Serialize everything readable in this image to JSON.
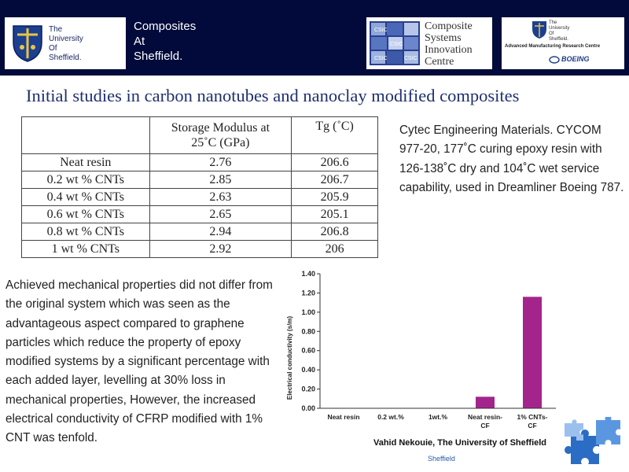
{
  "header": {
    "university_lines": [
      "The",
      "University",
      "Of",
      "Sheffield."
    ],
    "brand_lines": [
      "Composites",
      "At",
      "Sheffield."
    ],
    "csic_lines": [
      "Composite",
      "Systems",
      "Innovation",
      "Centre"
    ],
    "csic_tiles": [
      "CSIC",
      "CSIC",
      "CSIC",
      "CSIC"
    ],
    "amrc_mini": [
      "The",
      "University",
      "Of",
      "Sheffield."
    ],
    "amrc_label": "Advanced Manufacturing Research Centre",
    "boeing_label": "BOEING"
  },
  "title": "Initial studies in carbon nanotubes and nanoclay modified composites",
  "table": {
    "headers": [
      "",
      "Storage Modulus at 25˚C (GPa)",
      "Tg (˚C)"
    ],
    "rows": [
      [
        "Neat resin",
        "2.76",
        "206.6"
      ],
      [
        "0.2 wt % CNTs",
        "2.85",
        "206.7"
      ],
      [
        "0.4 wt % CNTs",
        "2.63",
        "205.9"
      ],
      [
        "0.6 wt % CNTs",
        "2.65",
        "205.1"
      ],
      [
        "0.8 wt % CNTs",
        "2.94",
        "206.8"
      ],
      [
        "1 wt % CNTs",
        "2.92",
        "206"
      ]
    ]
  },
  "right_text": "Cytec Engineering Materials. CYCOM 977-20, 177˚C curing epoxy resin with 126-138˚C dry and 104˚C wet service capability, used in Dreamliner Boeing 787.",
  "left_text": "Achieved mechanical properties did not differ from the original system which was seen as the advantageous aspect compared to graphene particles which reduce the property of epoxy modified systems by a significant percentage with each added layer, levelling at 30% loss in mechanical properties, However, the increased electrical conductivity of CFRP modified with 1% CNT was tenfold.",
  "credit": "Vahid Nekouie, The University of Sheffield",
  "footer": "Sheffield",
  "chart_data": {
    "type": "bar",
    "categories": [
      [
        "Neat resin"
      ],
      [
        "0.2 wt.%"
      ],
      [
        "1wt.%"
      ],
      [
        "Neat resin-",
        "CF"
      ],
      [
        "1% CNTs-",
        "CF"
      ]
    ],
    "values": [
      0,
      0,
      0,
      0.12,
      1.16
    ],
    "ylabel": "Electrical conductivity (s/m)",
    "ylim": [
      0,
      1.4
    ],
    "yticks": [
      "0.00",
      "0.20",
      "0.40",
      "0.60",
      "0.80",
      "1.00",
      "1.20",
      "1.40"
    ],
    "bar_color": "#a3258c"
  }
}
